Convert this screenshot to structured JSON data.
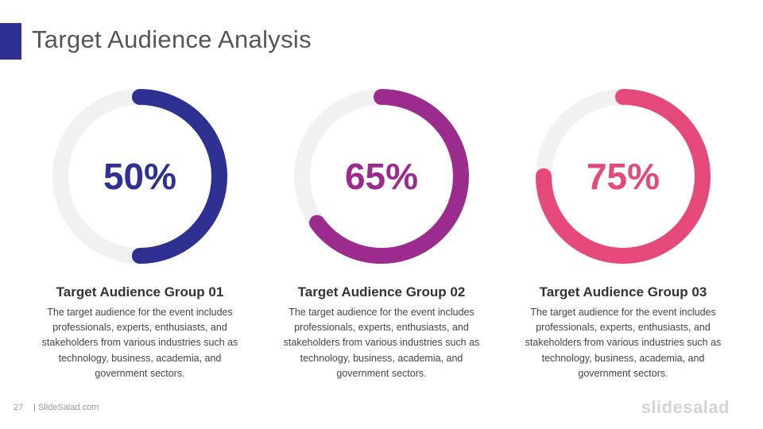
{
  "slide": {
    "title": "Target Audience Analysis",
    "page_number": "27",
    "site": "| SlideSalad.com",
    "brand": "slidesalad"
  },
  "colors": {
    "accent": "#2E3192",
    "track": "#F1F1F1",
    "group1": "#2E3192",
    "group2": "#9B2B8D",
    "group3": "#E4497A"
  },
  "groups": [
    {
      "percent_label": "50%",
      "percent": 50,
      "title": "Target Audience  Group 01",
      "description": "The target audience for the event includes professionals,  experts, enthusiasts,  and stakeholders from various industries such as technology, business, academia, and government  sectors."
    },
    {
      "percent_label": "65%",
      "percent": 65,
      "title": "Target Audience  Group 02",
      "description": "The target audience for the event includes professionals,  experts, enthusiasts,  and stakeholders from various industries such as technology, business, academia, and government  sectors."
    },
    {
      "percent_label": "75%",
      "percent": 75,
      "title": "Target Audience  Group 03",
      "description": "The target audience for the event includes professionals,  experts, enthusiasts,  and stakeholders from various industries such as technology, business, academia, and government  sectors."
    }
  ]
}
